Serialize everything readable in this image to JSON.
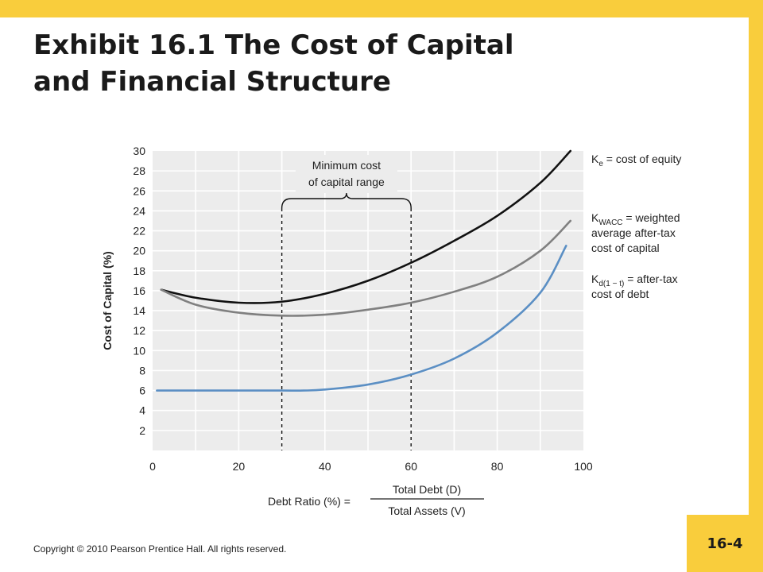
{
  "slide": {
    "title_line1": "Exhibit 16.1  The Cost of Capital",
    "title_line2": "and Financial Structure",
    "copyright": "Copyright © 2010 Pearson Prentice Hall.  All rights reserved.",
    "page_number": "16-4"
  },
  "colors": {
    "frame": "#f9cd3c",
    "plot_background": "#ececec",
    "grid": "#ffffff",
    "cost_of_equity": "#111111",
    "wacc": "#808080",
    "cost_of_debt": "#5b8fc4"
  },
  "chart_data": {
    "type": "line",
    "xlabel_prefix": "Debt Ratio (%)  =",
    "xlabel_numerator": "Total Debt (D)",
    "xlabel_denominator": "Total Assets (V)",
    "ylabel": "Cost of Capital (%)",
    "xlim": [
      0,
      100
    ],
    "ylim": [
      0,
      30
    ],
    "x_ticks": [
      "0",
      "20",
      "40",
      "60",
      "80",
      "100"
    ],
    "y_ticks": [
      "2",
      "4",
      "6",
      "8",
      "10",
      "12",
      "14",
      "16",
      "18",
      "20",
      "22",
      "24",
      "26",
      "28",
      "30"
    ],
    "grid": true,
    "series": [
      {
        "name_main": "K",
        "name_sub": "e",
        "name_rest": " = cost of equity",
        "name_line2": "",
        "name_line3": "",
        "color_key": "cost_of_equity",
        "points": [
          [
            2,
            16.1
          ],
          [
            10,
            15.3
          ],
          [
            20,
            14.8
          ],
          [
            30,
            14.9
          ],
          [
            40,
            15.7
          ],
          [
            50,
            17.0
          ],
          [
            60,
            18.8
          ],
          [
            70,
            21.0
          ],
          [
            80,
            23.5
          ],
          [
            90,
            26.8
          ],
          [
            97,
            30.0
          ]
        ]
      },
      {
        "name_main": "K",
        "name_sub": "WACC",
        "name_rest": " = weighted",
        "name_line2": "average after-tax",
        "name_line3": "cost of capital",
        "color_key": "wacc",
        "points": [
          [
            2,
            16.1
          ],
          [
            10,
            14.6
          ],
          [
            20,
            13.8
          ],
          [
            30,
            13.5
          ],
          [
            40,
            13.6
          ],
          [
            50,
            14.1
          ],
          [
            60,
            14.8
          ],
          [
            70,
            15.9
          ],
          [
            80,
            17.4
          ],
          [
            90,
            20.0
          ],
          [
            97,
            23.0
          ]
        ]
      },
      {
        "name_main": "K",
        "name_sub": "d(1 − t)",
        "name_rest": " = after-tax",
        "name_line2": "cost of debt",
        "name_line3": "",
        "color_key": "cost_of_debt",
        "points": [
          [
            1,
            6.0
          ],
          [
            20,
            6.0
          ],
          [
            30,
            6.0
          ],
          [
            35,
            6.0
          ],
          [
            40,
            6.1
          ],
          [
            50,
            6.6
          ],
          [
            60,
            7.6
          ],
          [
            70,
            9.2
          ],
          [
            80,
            11.8
          ],
          [
            90,
            15.8
          ],
          [
            96,
            20.5
          ]
        ]
      }
    ],
    "annotation": {
      "line1": "Minimum cost",
      "line2": "of capital range",
      "x_start": 30,
      "x_end": 60
    }
  }
}
